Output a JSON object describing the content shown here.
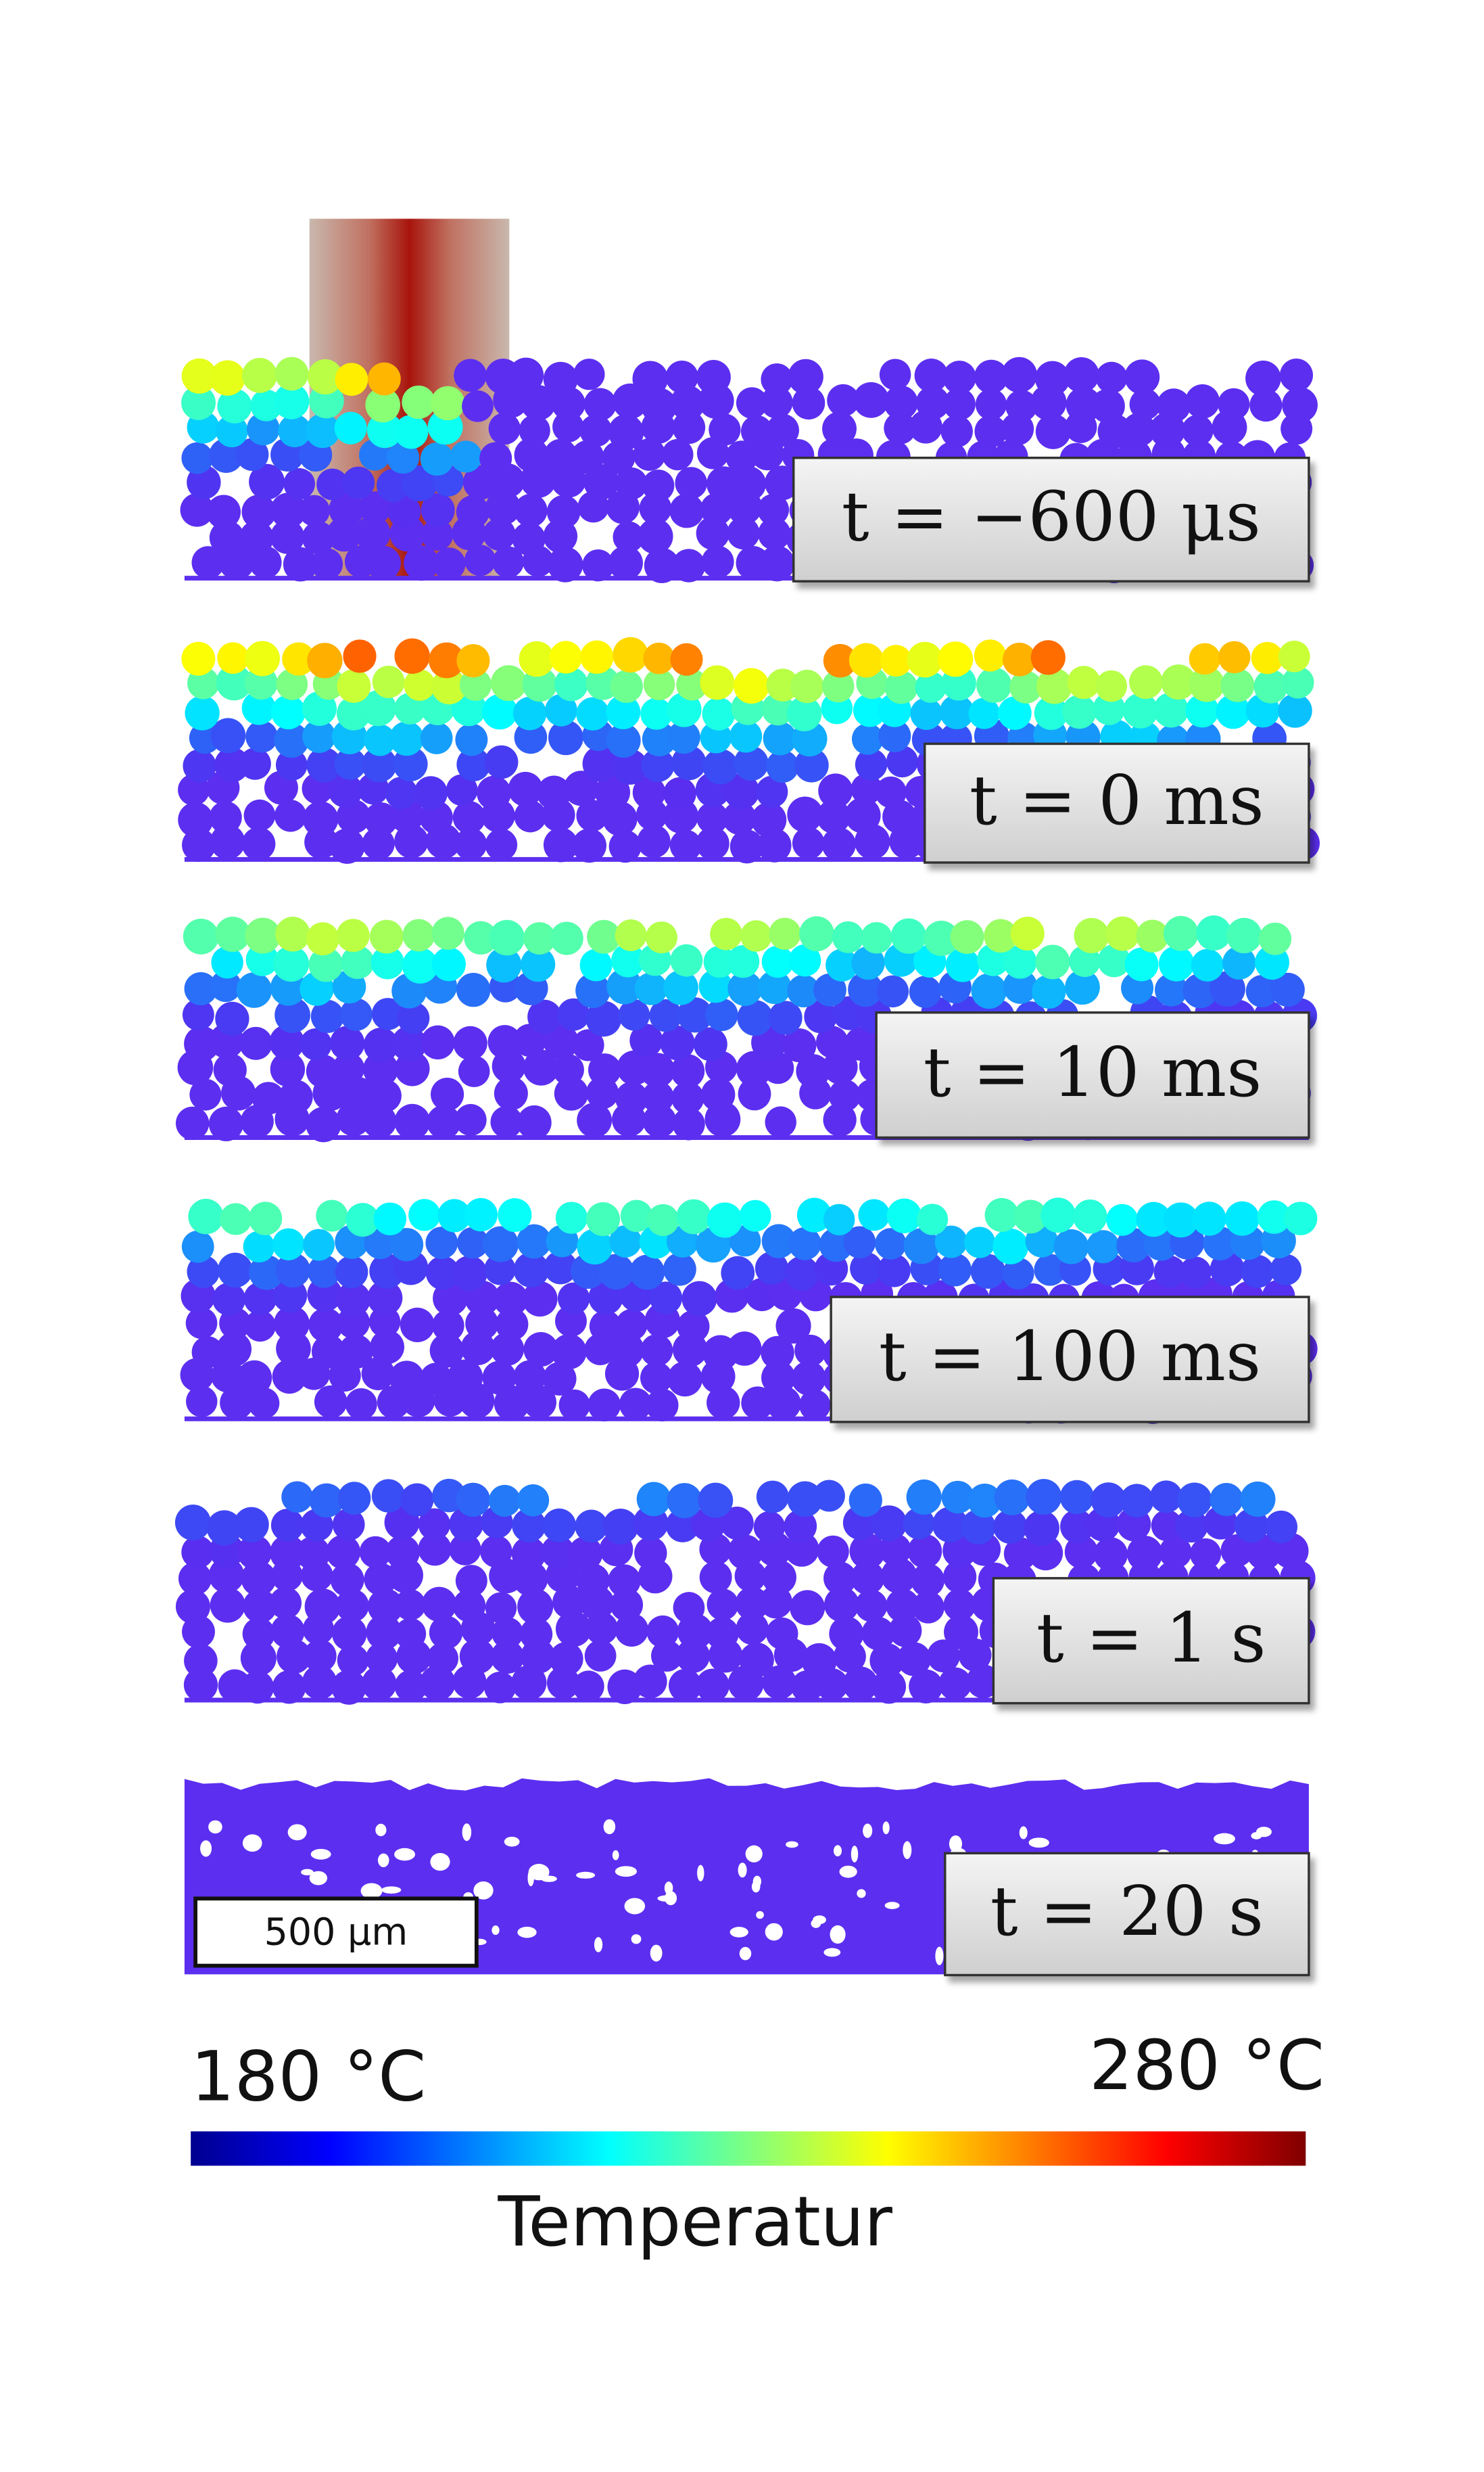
{
  "panels": [
    {
      "label": "t = −600 μs"
    },
    {
      "label": "t = 0 ms"
    },
    {
      "label": "t = 10 ms"
    },
    {
      "label": "t = 100 ms"
    },
    {
      "label": "t = 1 s"
    },
    {
      "label": "t = 20 s"
    }
  ],
  "scale_bar": "500 μm",
  "colorbar": {
    "min_label": "180 °C",
    "max_label": "280 °C",
    "title": "Temperatur"
  }
}
